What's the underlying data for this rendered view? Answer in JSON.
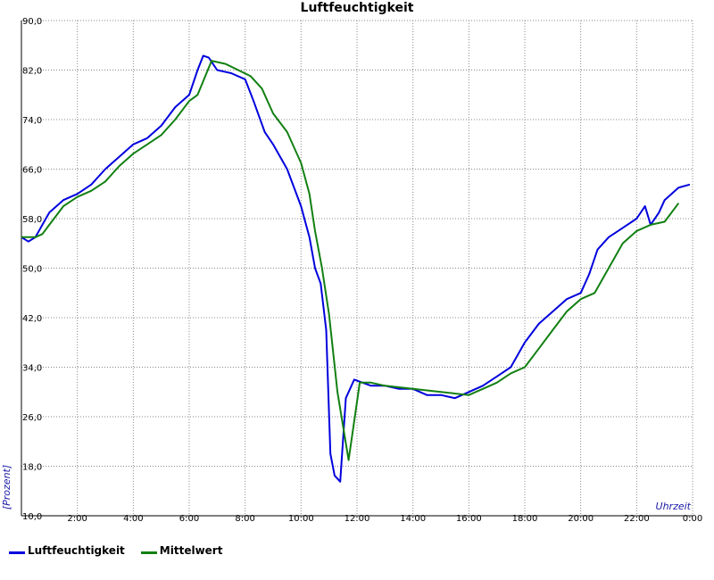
{
  "chart_data": {
    "type": "line",
    "title": "Luftfeuchtigkeit",
    "xlabel": "Uhrzeit",
    "ylabel": "[Prozent]",
    "xlim": [
      0,
      24
    ],
    "ylim": [
      10,
      90
    ],
    "grid": true,
    "legend_position": "bottom-left",
    "y_ticks": [
      "10,0",
      "18,0",
      "26,0",
      "34,0",
      "42,0",
      "50,0",
      "58,0",
      "66,0",
      "74,0",
      "82,0",
      "90,0"
    ],
    "y_tick_values": [
      10,
      18,
      26,
      34,
      42,
      50,
      58,
      66,
      74,
      82,
      90
    ],
    "x_ticks": [
      "2:00",
      "4:00",
      "6:00",
      "8:00",
      "10:00",
      "12:00",
      "14:00",
      "16:00",
      "18:00",
      "20:00",
      "22:00",
      "0:00"
    ],
    "x_tick_values": [
      2,
      4,
      6,
      8,
      10,
      12,
      14,
      16,
      18,
      20,
      22,
      24
    ],
    "series": [
      {
        "name": "Luftfeuchtigkeit",
        "color": "#0000dd",
        "x": [
          0,
          0.25,
          0.5,
          0.75,
          1,
          1.5,
          2,
          2.5,
          3,
          3.5,
          4,
          4.5,
          5,
          5.5,
          6,
          6.3,
          6.5,
          6.7,
          7,
          7.5,
          8,
          8.3,
          8.7,
          9,
          9.5,
          10,
          10.3,
          10.5,
          10.7,
          10.9,
          11.05,
          11.2,
          11.4,
          11.6,
          11.75,
          11.9,
          12.5,
          13,
          13.5,
          14,
          14.5,
          15,
          15.5,
          16,
          16.5,
          17,
          17.5,
          18,
          18.5,
          19,
          19.5,
          20,
          20.3,
          20.6,
          21,
          21.5,
          22,
          22.3,
          22.5,
          22.8,
          23,
          23.5,
          23.9
        ],
        "values": [
          55,
          54.3,
          55,
          57,
          59,
          61,
          62,
          63.5,
          66,
          68,
          70,
          71,
          73,
          76,
          78,
          82,
          84.3,
          84,
          82,
          81.5,
          80.5,
          77,
          72,
          70,
          66,
          60,
          55,
          50,
          47.5,
          40,
          20,
          16.5,
          15.5,
          29,
          30.5,
          32,
          31,
          31,
          30.5,
          30.5,
          29.5,
          29.5,
          29,
          30,
          31,
          32.5,
          34,
          38,
          41,
          43,
          45,
          46,
          49,
          53,
          55,
          56.5,
          58,
          60,
          57,
          59,
          61,
          63,
          63.5
        ]
      },
      {
        "name": "Mittelwert",
        "color": "#128012",
        "x": [
          0,
          0.5,
          0.75,
          1,
          1.5,
          2,
          2.5,
          3,
          3.5,
          4,
          4.5,
          5,
          5.5,
          6,
          6.3,
          6.8,
          7.3,
          8.2,
          8.6,
          9,
          9.5,
          10,
          10.3,
          10.5,
          10.75,
          11,
          11.3,
          11.7,
          12.1,
          12.5,
          13,
          14,
          15,
          16,
          16.5,
          17,
          17.5,
          18,
          18.5,
          19,
          19.5,
          20,
          20.5,
          21,
          21.5,
          22,
          22.5,
          23,
          23.5
        ],
        "values": [
          55,
          55,
          55.5,
          57,
          60,
          61.5,
          62.5,
          64,
          66.5,
          68.5,
          70,
          71.5,
          74,
          77,
          78,
          83.5,
          83,
          81,
          79,
          75,
          72,
          67,
          62,
          56,
          50,
          42.5,
          30,
          19,
          31.5,
          31.5,
          31,
          30.5,
          30,
          29.5,
          30.5,
          31.5,
          33,
          34,
          37,
          40,
          43,
          45,
          46,
          50,
          54,
          56,
          57,
          57.5,
          60.5
        ]
      }
    ]
  }
}
